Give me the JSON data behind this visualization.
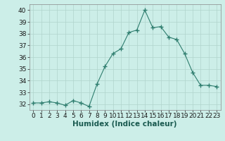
{
  "x": [
    0,
    1,
    2,
    3,
    4,
    5,
    6,
    7,
    8,
    9,
    10,
    11,
    12,
    13,
    14,
    15,
    16,
    17,
    18,
    19,
    20,
    21,
    22,
    23
  ],
  "y": [
    32.1,
    32.1,
    32.2,
    32.1,
    31.9,
    32.3,
    32.1,
    31.8,
    33.7,
    35.2,
    36.3,
    36.7,
    38.1,
    38.3,
    40.0,
    38.5,
    38.6,
    37.7,
    37.5,
    36.3,
    34.7,
    33.6,
    33.6,
    33.5
  ],
  "line_color": "#2e7d6e",
  "marker": "+",
  "marker_size": 4,
  "bg_color": "#cceee8",
  "grid_color": "#b0d4cc",
  "xlabel": "Humidex (Indice chaleur)",
  "ylim": [
    31.5,
    40.5
  ],
  "xlim": [
    -0.5,
    23.5
  ],
  "yticks": [
    32,
    33,
    34,
    35,
    36,
    37,
    38,
    39,
    40
  ],
  "xticks": [
    0,
    1,
    2,
    3,
    4,
    5,
    6,
    7,
    8,
    9,
    10,
    11,
    12,
    13,
    14,
    15,
    16,
    17,
    18,
    19,
    20,
    21,
    22,
    23
  ],
  "tick_fontsize": 6.5,
  "label_fontsize": 7.5
}
